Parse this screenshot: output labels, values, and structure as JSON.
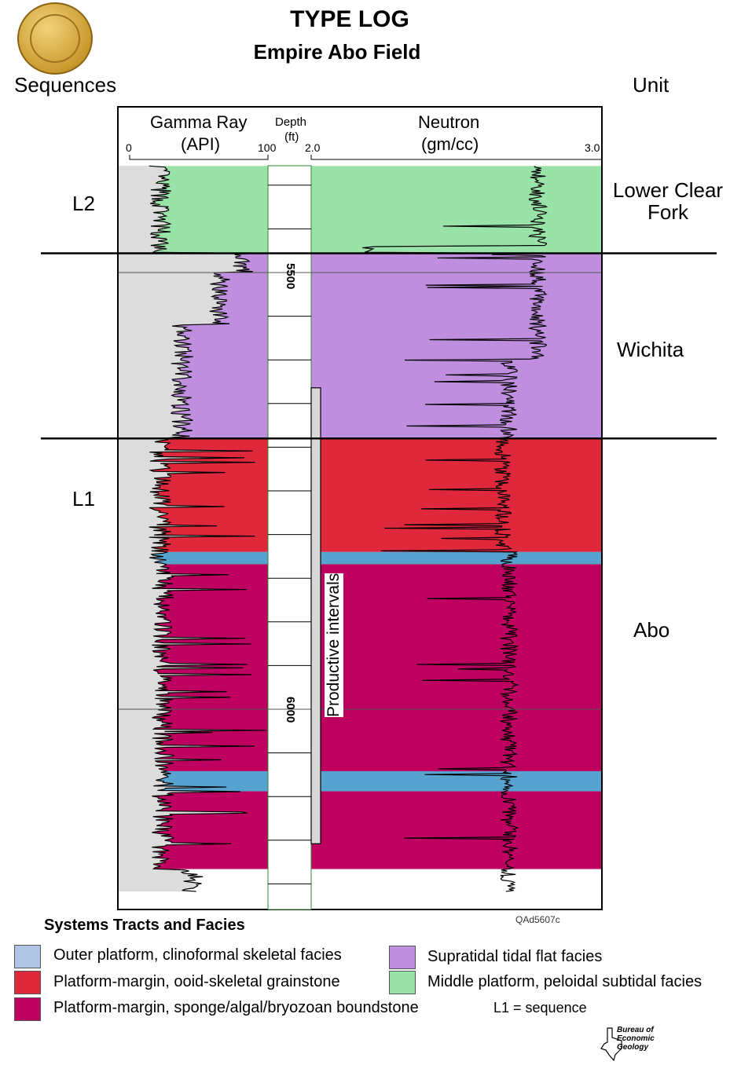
{
  "title": "TYPE LOG",
  "subtitle": "Empire Abo Field",
  "left_header": "Sequences",
  "right_header": "Unit",
  "figure_id": "QAd5607c",
  "logo_text": "Bureau of Economic Geology",
  "seal_text": "Bureau of Economic Geology",
  "colors": {
    "outer_platform": "#b0c4e6",
    "grainstone": "#e0283c",
    "boundstone": "#be0060",
    "supratidal": "#c08ede",
    "middle_platform": "#99e3a8",
    "blue_band": "#57a3d0",
    "gamma_fill": "#dcdcdc"
  },
  "chart_data": {
    "type": "well-log",
    "tracks": [
      {
        "name": "Gamma Ray",
        "unit": "(API)",
        "min_label": "0",
        "max_label": "100",
        "range": [
          0,
          100
        ]
      },
      {
        "name": "Depth",
        "unit": "(ft)",
        "ticks": [
          "5500",
          "6000"
        ]
      },
      {
        "name": "Neutron",
        "unit": "(gm/cc)",
        "min_label": "2.0",
        "max_label": "3.0",
        "range": [
          2.0,
          3.0
        ]
      }
    ],
    "depth_range_ft": [
      5378,
      6229
    ],
    "intervals": [
      {
        "top": 5378,
        "base": 5478,
        "facies": "middle_platform"
      },
      {
        "top": 5478,
        "base": 5690,
        "facies": "supratidal"
      },
      {
        "top": 5690,
        "base": 5820,
        "facies": "grainstone"
      },
      {
        "top": 5820,
        "base": 5834,
        "facies": "blue_band"
      },
      {
        "top": 5834,
        "base": 6071,
        "facies": "boundstone"
      },
      {
        "top": 6071,
        "base": 6094,
        "facies": "blue_band"
      },
      {
        "top": 6094,
        "base": 6183,
        "facies": "boundstone"
      }
    ],
    "sequence_boundaries_ft": [
      5478,
      5690
    ],
    "productive_interval": {
      "label": "Productive intervals",
      "top": 5632,
      "base": 6154
    },
    "sequences": [
      {
        "label": "L2"
      },
      {
        "label": "L1"
      }
    ],
    "units": [
      {
        "label": "Lower Clear Fork"
      },
      {
        "label": "Wichita"
      },
      {
        "label": "Abo"
      }
    ]
  },
  "legend": {
    "title": "Systems Tracts and Facies",
    "items": [
      {
        "label": "Outer platform, clinoformal skeletal facies",
        "facies": "outer_platform"
      },
      {
        "label": "Platform-margin, ooid-skeletal grainstone",
        "facies": "grainstone"
      },
      {
        "label": "Platform-margin, sponge/algal/bryozoan boundstone",
        "facies": "boundstone"
      },
      {
        "label": "Supratidal tidal flat facies",
        "facies": "supratidal"
      },
      {
        "label": "Middle platform, peloidal subtidal facies",
        "facies": "middle_platform"
      }
    ],
    "note": "L1 = sequence"
  }
}
